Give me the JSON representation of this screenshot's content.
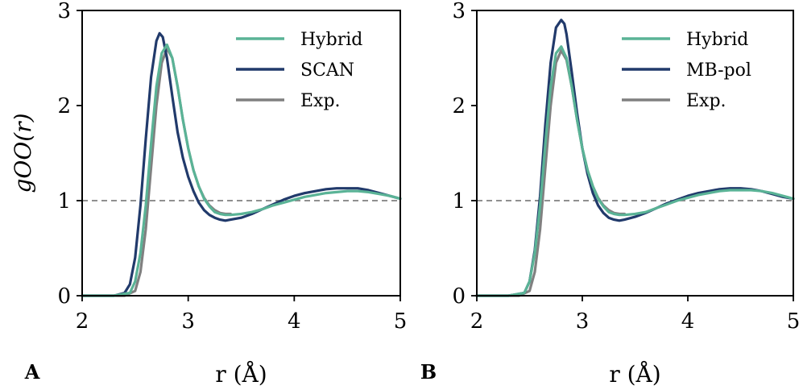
{
  "chart_data": [
    {
      "type": "line",
      "panel_label": "A",
      "xlabel": "r (Å)",
      "ylabel": "gOO(r)",
      "xlim": [
        2,
        5
      ],
      "ylim": [
        0,
        3
      ],
      "xticks": [
        "2",
        "3",
        "4",
        "5"
      ],
      "yticks": [
        "0",
        "1",
        "2",
        "3"
      ],
      "reference_line": {
        "y": 1,
        "style": "dashed"
      },
      "legend_position": "top-right",
      "series": [
        {
          "name": "Hybrid",
          "color": "#5ab396",
          "x": [
            2.0,
            2.3,
            2.45,
            2.5,
            2.55,
            2.6,
            2.65,
            2.7,
            2.75,
            2.8,
            2.85,
            2.9,
            2.95,
            3.0,
            3.05,
            3.1,
            3.15,
            3.2,
            3.25,
            3.3,
            3.35,
            3.4,
            3.5,
            3.6,
            3.7,
            3.8,
            3.9,
            4.0,
            4.1,
            4.2,
            4.3,
            4.4,
            4.5,
            4.6,
            4.7,
            4.8,
            4.9,
            5.0
          ],
          "y": [
            0,
            0,
            0.03,
            0.15,
            0.45,
            0.95,
            1.6,
            2.2,
            2.55,
            2.64,
            2.5,
            2.2,
            1.85,
            1.55,
            1.32,
            1.15,
            1.02,
            0.94,
            0.88,
            0.86,
            0.85,
            0.85,
            0.86,
            0.88,
            0.91,
            0.95,
            0.98,
            1.01,
            1.04,
            1.06,
            1.08,
            1.09,
            1.1,
            1.1,
            1.09,
            1.07,
            1.05,
            1.02
          ]
        },
        {
          "name": "SCAN",
          "color": "#213a6b",
          "x": [
            2.0,
            2.3,
            2.4,
            2.45,
            2.5,
            2.55,
            2.6,
            2.65,
            2.7,
            2.73,
            2.76,
            2.8,
            2.85,
            2.9,
            2.95,
            3.0,
            3.05,
            3.1,
            3.15,
            3.2,
            3.25,
            3.3,
            3.35,
            3.4,
            3.5,
            3.6,
            3.7,
            3.8,
            3.9,
            4.0,
            4.1,
            4.2,
            4.3,
            4.4,
            4.5,
            4.6,
            4.7,
            4.8,
            4.9,
            5.0
          ],
          "y": [
            0,
            0,
            0.03,
            0.12,
            0.4,
            0.95,
            1.65,
            2.3,
            2.68,
            2.76,
            2.72,
            2.5,
            2.1,
            1.72,
            1.45,
            1.25,
            1.1,
            0.98,
            0.9,
            0.85,
            0.82,
            0.8,
            0.79,
            0.8,
            0.82,
            0.86,
            0.91,
            0.96,
            1.01,
            1.05,
            1.08,
            1.1,
            1.12,
            1.13,
            1.13,
            1.13,
            1.11,
            1.08,
            1.05,
            1.02
          ]
        },
        {
          "name": "Exp.",
          "color": "#808080",
          "x": [
            2.0,
            2.4,
            2.5,
            2.55,
            2.6,
            2.65,
            2.7,
            2.75,
            2.8,
            2.85,
            2.9,
            2.95,
            3.0,
            3.05,
            3.1,
            3.15,
            3.2,
            3.25,
            3.3,
            3.35,
            3.4
          ],
          "y": [
            0,
            0,
            0.05,
            0.25,
            0.7,
            1.35,
            2.0,
            2.45,
            2.6,
            2.5,
            2.2,
            1.85,
            1.55,
            1.32,
            1.15,
            1.03,
            0.95,
            0.9,
            0.87,
            0.86,
            0.86
          ]
        }
      ]
    },
    {
      "type": "line",
      "panel_label": "B",
      "xlabel": "r (Å)",
      "ylabel": "",
      "xlim": [
        2,
        5
      ],
      "ylim": [
        0,
        3
      ],
      "xticks": [
        "2",
        "3",
        "4",
        "5"
      ],
      "yticks": [
        "0",
        "1",
        "2",
        "3"
      ],
      "reference_line": {
        "y": 1,
        "style": "dashed"
      },
      "legend_position": "top-right",
      "series": [
        {
          "name": "Hybrid",
          "color": "#5ab396",
          "x": [
            2.0,
            2.3,
            2.45,
            2.5,
            2.55,
            2.6,
            2.65,
            2.7,
            2.75,
            2.8,
            2.85,
            2.9,
            2.95,
            3.0,
            3.05,
            3.1,
            3.15,
            3.2,
            3.25,
            3.3,
            3.35,
            3.4,
            3.5,
            3.6,
            3.7,
            3.8,
            3.9,
            4.0,
            4.1,
            4.2,
            4.3,
            4.4,
            4.5,
            4.6,
            4.7,
            4.8,
            4.9,
            5.0
          ],
          "y": [
            0,
            0,
            0.03,
            0.15,
            0.45,
            0.95,
            1.6,
            2.2,
            2.55,
            2.62,
            2.5,
            2.2,
            1.85,
            1.55,
            1.32,
            1.15,
            1.02,
            0.94,
            0.88,
            0.86,
            0.85,
            0.85,
            0.86,
            0.88,
            0.92,
            0.96,
            1.0,
            1.03,
            1.06,
            1.08,
            1.1,
            1.11,
            1.11,
            1.11,
            1.1,
            1.08,
            1.05,
            1.02
          ]
        },
        {
          "name": "MB-pol",
          "color": "#213a6b",
          "x": [
            2.0,
            2.3,
            2.45,
            2.5,
            2.55,
            2.6,
            2.65,
            2.7,
            2.75,
            2.8,
            2.83,
            2.85,
            2.9,
            2.95,
            3.0,
            3.05,
            3.1,
            3.15,
            3.2,
            3.25,
            3.3,
            3.35,
            3.4,
            3.5,
            3.6,
            3.7,
            3.8,
            3.9,
            4.0,
            4.1,
            4.2,
            4.3,
            4.4,
            4.5,
            4.6,
            4.7,
            4.8,
            4.9,
            5.0
          ],
          "y": [
            0,
            0,
            0.03,
            0.15,
            0.48,
            1.05,
            1.8,
            2.45,
            2.82,
            2.9,
            2.86,
            2.75,
            2.35,
            1.92,
            1.55,
            1.28,
            1.08,
            0.95,
            0.87,
            0.82,
            0.8,
            0.79,
            0.8,
            0.83,
            0.87,
            0.92,
            0.97,
            1.01,
            1.05,
            1.08,
            1.1,
            1.12,
            1.13,
            1.13,
            1.12,
            1.1,
            1.07,
            1.04,
            1.02
          ]
        },
        {
          "name": "Exp.",
          "color": "#808080",
          "x": [
            2.0,
            2.4,
            2.5,
            2.55,
            2.6,
            2.65,
            2.7,
            2.75,
            2.8,
            2.85,
            2.9,
            2.95,
            3.0,
            3.05,
            3.1,
            3.15,
            3.2,
            3.25,
            3.3,
            3.35,
            3.4
          ],
          "y": [
            0,
            0,
            0.05,
            0.25,
            0.7,
            1.35,
            2.0,
            2.45,
            2.58,
            2.48,
            2.2,
            1.85,
            1.55,
            1.32,
            1.15,
            1.03,
            0.95,
            0.9,
            0.87,
            0.86,
            0.86
          ]
        }
      ]
    }
  ]
}
